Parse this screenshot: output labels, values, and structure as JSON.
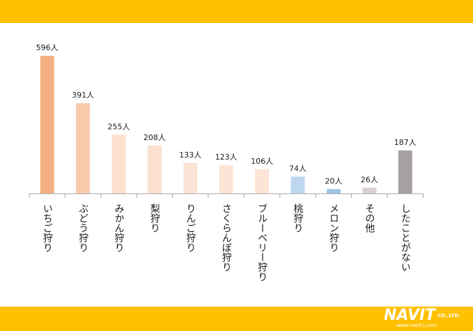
{
  "colors": {
    "band": "#ffc000",
    "axis": "#a6a6a6",
    "text": "#1a1a1a"
  },
  "logo": {
    "text": "NAVIT",
    "suffix": "CO.,LTD.",
    "url": "www.navit-j.com"
  },
  "chart_data": {
    "type": "bar",
    "title": "",
    "xlabel": "",
    "ylabel": "",
    "ylim": [
      0,
      596
    ],
    "grid": false,
    "categories": [
      "いちご狩り",
      "ぶどう狩り",
      "みかん狩り",
      "梨狩り",
      "りんご狩り",
      "さくらんぼ狩り",
      "ブルーベリー狩り",
      "桃狩り",
      "メロン狩り",
      "その他",
      "したことがない"
    ],
    "values": [
      596,
      391,
      255,
      208,
      133,
      123,
      106,
      74,
      20,
      26,
      187
    ],
    "data_labels": [
      "596人",
      "391人",
      "255人",
      "208人",
      "133人",
      "123人",
      "106人",
      "74人",
      "20人",
      "26人",
      "187人"
    ],
    "bar_colors": [
      "#f4b183",
      "#f8cbad",
      "#fbe0cf",
      "#fbe0cf",
      "#fce5d6",
      "#fce5d6",
      "#fce5d6",
      "#bdd7ee",
      "#9dc3e6",
      "#d9d0d0",
      "#a6a0a0"
    ]
  }
}
